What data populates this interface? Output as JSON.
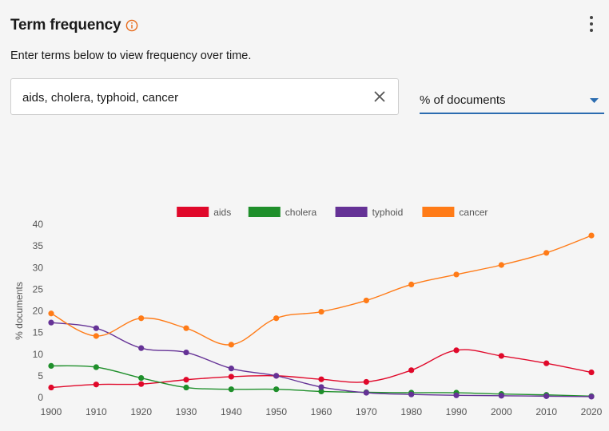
{
  "header": {
    "title": "Term frequency",
    "info_icon": "info-icon",
    "menu_icon": "more-vertical-icon"
  },
  "subtitle": "Enter terms below to view frequency over time.",
  "search": {
    "value": "aids, cholera, typhoid, cancer",
    "clear_icon": "close-icon"
  },
  "metric_select": {
    "value": "% of documents",
    "icon": "caret-down-icon"
  },
  "colors": {
    "accent": "#e86a1a",
    "select_underline": "#2b6cb0"
  },
  "chart_data": {
    "type": "line",
    "ylabel": "% documents",
    "xlabel": "",
    "ylim": [
      0,
      40
    ],
    "yticks": [
      0,
      5,
      10,
      15,
      20,
      25,
      30,
      35,
      40
    ],
    "categories": [
      "1900",
      "1910",
      "1920",
      "1930",
      "1940",
      "1950",
      "1960",
      "1970",
      "1980",
      "1990",
      "2000",
      "2010",
      "2020"
    ],
    "legend_position": "top",
    "grid": false,
    "series": [
      {
        "name": "aids",
        "color": "#e0082a",
        "values": [
          2.3,
          3.0,
          3.1,
          4.1,
          4.8,
          5.0,
          4.2,
          3.6,
          6.3,
          10.9,
          9.6,
          7.9,
          5.8
        ]
      },
      {
        "name": "cholera",
        "color": "#1f8f2b",
        "values": [
          7.3,
          7.0,
          4.5,
          2.3,
          1.9,
          1.9,
          1.4,
          1.2,
          1.1,
          1.1,
          0.8,
          0.6,
          0.3
        ]
      },
      {
        "name": "typhoid",
        "color": "#653296",
        "values": [
          17.3,
          16.0,
          11.4,
          10.4,
          6.7,
          5.0,
          2.4,
          1.1,
          0.7,
          0.5,
          0.4,
          0.3,
          0.2
        ]
      },
      {
        "name": "cancer",
        "color": "#ff7b17",
        "values": [
          19.4,
          14.2,
          18.3,
          16.0,
          12.2,
          18.3,
          19.8,
          22.4,
          26.1,
          28.4,
          30.6,
          33.4,
          37.4
        ]
      }
    ]
  }
}
